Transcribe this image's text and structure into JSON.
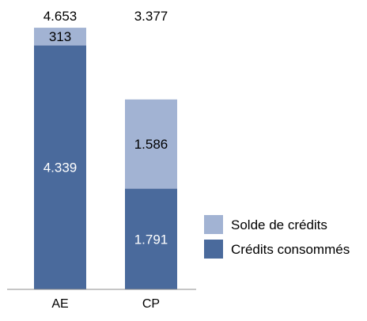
{
  "chart_data": {
    "type": "bar",
    "stacked": true,
    "categories": [
      "AE",
      "CP"
    ],
    "series": [
      {
        "name": "Crédits consommés",
        "values": [
          4.339,
          1.791
        ],
        "labels": [
          "4.339",
          "1.791"
        ],
        "color": "#4a6a9c",
        "label_color": "#ffffff"
      },
      {
        "name": "Solde de crédits",
        "values": [
          0.313,
          1.586
        ],
        "labels": [
          "313",
          "1.586"
        ],
        "color": "#a2b3d3",
        "label_color": "#000000"
      }
    ],
    "totals": [
      4.653,
      3.377
    ],
    "total_labels": [
      "4.653",
      "3.377"
    ],
    "ylim": [
      0,
      4.653
    ],
    "grid": false,
    "legend": {
      "position": "right",
      "entries": [
        "Solde de crédits",
        "Crédits consommés"
      ]
    },
    "title": "",
    "xlabel": "",
    "ylabel": ""
  }
}
